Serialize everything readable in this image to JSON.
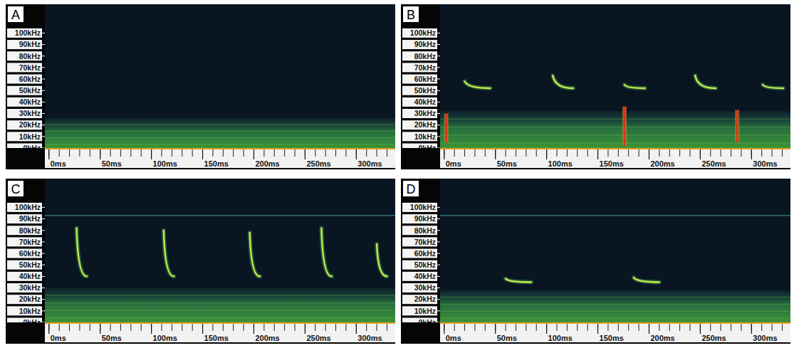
{
  "chart_data": [
    {
      "type": "spectrogram",
      "title": "A",
      "xlim": [
        -4,
        338
      ],
      "ylim": [
        0,
        125
      ],
      "xticks": [
        {
          "value": 0,
          "label": "0ms"
        },
        {
          "value": 50,
          "label": "50ms"
        },
        {
          "value": 100,
          "label": "100ms"
        },
        {
          "value": 150,
          "label": "150ms"
        },
        {
          "value": 200,
          "label": "200ms"
        },
        {
          "value": 250,
          "label": "250ms"
        },
        {
          "value": 300,
          "label": "300ms"
        }
      ],
      "yticks": [
        {
          "value": 0,
          "label": "0kHz"
        },
        {
          "value": 10,
          "label": "10kHz"
        },
        {
          "value": 20,
          "label": "20kHz"
        },
        {
          "value": 30,
          "label": "30kHz"
        },
        {
          "value": 40,
          "label": "40kHz"
        },
        {
          "value": 50,
          "label": "50kHz"
        },
        {
          "value": 60,
          "label": "60kHz"
        },
        {
          "value": 70,
          "label": "70kHz"
        },
        {
          "value": 80,
          "label": "80kHz"
        },
        {
          "value": 90,
          "label": "90kHz"
        },
        {
          "value": 100,
          "label": "100kHz"
        }
      ],
      "noise_band": [
        0,
        26
      ],
      "calls": [],
      "clicks": []
    },
    {
      "type": "spectrogram",
      "title": "B",
      "xlim": [
        -4,
        338
      ],
      "ylim": [
        0,
        125
      ],
      "xticks": [
        {
          "value": 0,
          "label": "0ms"
        },
        {
          "value": 50,
          "label": "50ms"
        },
        {
          "value": 100,
          "label": "100ms"
        },
        {
          "value": 150,
          "label": "150ms"
        },
        {
          "value": 200,
          "label": "200ms"
        },
        {
          "value": 250,
          "label": "250ms"
        },
        {
          "value": 300,
          "label": "300ms"
        }
      ],
      "yticks": [
        {
          "value": 0,
          "label": "0kHz"
        },
        {
          "value": 10,
          "label": "10kHz"
        },
        {
          "value": 20,
          "label": "20kHz"
        },
        {
          "value": 30,
          "label": "30kHz"
        },
        {
          "value": 40,
          "label": "40kHz"
        },
        {
          "value": 50,
          "label": "50kHz"
        },
        {
          "value": 60,
          "label": "60kHz"
        },
        {
          "value": 70,
          "label": "70kHz"
        },
        {
          "value": 80,
          "label": "80kHz"
        },
        {
          "value": 90,
          "label": "90kHz"
        },
        {
          "value": 100,
          "label": "100kHz"
        }
      ],
      "noise_band": [
        0,
        32
      ],
      "calls": [
        {
          "t_start": 20,
          "t_end": 45,
          "f_start": 58,
          "f_end": 52
        },
        {
          "t_start": 106,
          "t_end": 126,
          "f_start": 63,
          "f_end": 52
        },
        {
          "t_start": 176,
          "t_end": 196,
          "f_start": 55,
          "f_end": 52
        },
        {
          "t_start": 245,
          "t_end": 265,
          "f_start": 63,
          "f_end": 52
        },
        {
          "t_start": 311,
          "t_end": 331,
          "f_start": 55,
          "f_end": 52
        }
      ],
      "clicks": [
        {
          "t": 2,
          "f_low": 5,
          "f_high": 30
        },
        {
          "t": 176,
          "f_low": 2,
          "f_high": 36
        },
        {
          "t": 286,
          "f_low": 5,
          "f_high": 33
        }
      ]
    },
    {
      "type": "spectrogram",
      "title": "C",
      "xlim": [
        -4,
        338
      ],
      "ylim": [
        0,
        125
      ],
      "xticks": [
        {
          "value": 0,
          "label": "0ms"
        },
        {
          "value": 50,
          "label": "50ms"
        },
        {
          "value": 100,
          "label": "100ms"
        },
        {
          "value": 150,
          "label": "150ms"
        },
        {
          "value": 200,
          "label": "200ms"
        },
        {
          "value": 250,
          "label": "250ms"
        },
        {
          "value": 300,
          "label": "300ms"
        }
      ],
      "yticks": [
        {
          "value": 0,
          "label": "0kHz"
        },
        {
          "value": 10,
          "label": "10kHz"
        },
        {
          "value": 20,
          "label": "20kHz"
        },
        {
          "value": 30,
          "label": "30kHz"
        },
        {
          "value": 40,
          "label": "40kHz"
        },
        {
          "value": 50,
          "label": "50kHz"
        },
        {
          "value": 60,
          "label": "60kHz"
        },
        {
          "value": 70,
          "label": "70kHz"
        },
        {
          "value": 80,
          "label": "80kHz"
        },
        {
          "value": 90,
          "label": "90kHz"
        },
        {
          "value": 100,
          "label": "100kHz"
        }
      ],
      "noise_band": [
        0,
        30
      ],
      "tone_khz": 93,
      "calls": [
        {
          "t_start": 27,
          "t_end": 37,
          "f_start": 82,
          "f_end": 40
        },
        {
          "t_start": 112,
          "t_end": 122,
          "f_start": 80,
          "f_end": 40
        },
        {
          "t_start": 196,
          "t_end": 206,
          "f_start": 78,
          "f_end": 40
        },
        {
          "t_start": 266,
          "t_end": 276,
          "f_start": 82,
          "f_end": 40
        },
        {
          "t_start": 320,
          "t_end": 330,
          "f_start": 68,
          "f_end": 40
        }
      ],
      "clicks": []
    },
    {
      "type": "spectrogram",
      "title": "D",
      "xlim": [
        -4,
        338
      ],
      "ylim": [
        0,
        125
      ],
      "xticks": [
        {
          "value": 0,
          "label": "0ms"
        },
        {
          "value": 50,
          "label": "50ms"
        },
        {
          "value": 100,
          "label": "100ms"
        },
        {
          "value": 150,
          "label": "150ms"
        },
        {
          "value": 200,
          "label": "200ms"
        },
        {
          "value": 250,
          "label": "250ms"
        },
        {
          "value": 300,
          "label": "300ms"
        }
      ],
      "yticks": [
        {
          "value": 0,
          "label": "0kHz"
        },
        {
          "value": 10,
          "label": "10kHz"
        },
        {
          "value": 20,
          "label": "20kHz"
        },
        {
          "value": 30,
          "label": "30kHz"
        },
        {
          "value": 40,
          "label": "40kHz"
        },
        {
          "value": 50,
          "label": "50kHz"
        },
        {
          "value": 60,
          "label": "60kHz"
        },
        {
          "value": 70,
          "label": "70kHz"
        },
        {
          "value": 80,
          "label": "80kHz"
        },
        {
          "value": 90,
          "label": "90kHz"
        },
        {
          "value": 100,
          "label": "100kHz"
        }
      ],
      "noise_band": [
        0,
        28
      ],
      "tone_khz": 93,
      "calls": [
        {
          "t_start": 60,
          "t_end": 85,
          "f_start": 38,
          "f_end": 35
        },
        {
          "t_start": 185,
          "t_end": 210,
          "f_start": 39,
          "f_end": 35
        }
      ],
      "clicks": []
    }
  ]
}
